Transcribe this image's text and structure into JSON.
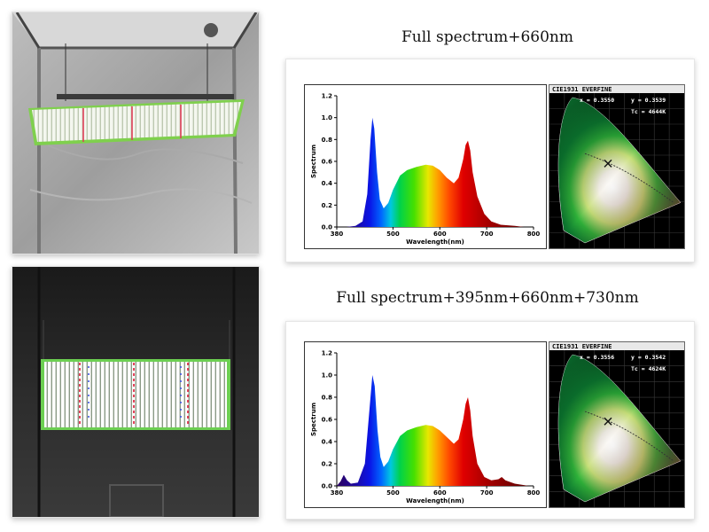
{
  "captions": {
    "top": "Full spectrum+660nm",
    "bottom": "Full spectrum+395nm+660nm+730nm"
  },
  "charts": [
    {
      "chart_data": {
        "type": "area",
        "title": "",
        "xlabel": "Wavelength(nm)",
        "ylabel": "Spectrum",
        "xlim": [
          380,
          800
        ],
        "ylim": [
          0,
          1.2
        ],
        "xticks": [
          "380",
          "500",
          "600",
          "700",
          "800"
        ],
        "yticks": [
          "0.0",
          "0.2",
          "0.4",
          "0.6",
          "0.8",
          "1.0",
          "1.2"
        ],
        "grid": false,
        "series": [
          {
            "x": [
              400,
              420,
              435,
              445,
              452,
              456,
              460,
              466,
              472,
              480,
              490,
              500,
              515,
              530,
              550,
              570,
              585,
              600,
              615,
              630,
              640,
              650,
              655,
              660,
              665,
              670,
              680,
              695,
              710,
              730,
              760,
              780
            ],
            "y": [
              0.0,
              0.01,
              0.05,
              0.3,
              0.8,
              1.0,
              0.9,
              0.5,
              0.25,
              0.17,
              0.22,
              0.34,
              0.47,
              0.52,
              0.55,
              0.57,
              0.56,
              0.52,
              0.45,
              0.4,
              0.45,
              0.62,
              0.75,
              0.79,
              0.7,
              0.5,
              0.28,
              0.12,
              0.05,
              0.02,
              0.01,
              0.0
            ]
          }
        ]
      },
      "cie": {
        "header": "CIE1931 EVERFINE",
        "x_label": "x = 0.3550",
        "y_label": "y = 0.3539",
        "tc_label": "Tc = 4644K"
      }
    },
    {
      "chart_data": {
        "type": "area",
        "title": "",
        "xlabel": "Wavelength(nm)",
        "ylabel": "Spectrum",
        "xlim": [
          380,
          800
        ],
        "ylim": [
          0,
          1.2
        ],
        "xticks": [
          "380",
          "500",
          "600",
          "700",
          "800"
        ],
        "yticks": [
          "0.0",
          "0.2",
          "0.4",
          "0.6",
          "0.8",
          "1.0",
          "1.2"
        ],
        "grid": false,
        "series": [
          {
            "x": [
              380,
              388,
              395,
              402,
              410,
              425,
              440,
              450,
              456,
              461,
              467,
              473,
              480,
              490,
              500,
              515,
              530,
              550,
              570,
              585,
              600,
              615,
              630,
              640,
              650,
              655,
              660,
              665,
              670,
              680,
              695,
              710,
              725,
              732,
              740,
              760,
              790
            ],
            "y": [
              0.0,
              0.04,
              0.1,
              0.05,
              0.02,
              0.03,
              0.2,
              0.7,
              1.0,
              0.9,
              0.5,
              0.26,
              0.17,
              0.22,
              0.33,
              0.45,
              0.5,
              0.53,
              0.55,
              0.54,
              0.5,
              0.44,
              0.38,
              0.42,
              0.6,
              0.74,
              0.8,
              0.68,
              0.45,
              0.2,
              0.08,
              0.05,
              0.06,
              0.08,
              0.05,
              0.02,
              0.0
            ]
          }
        ]
      },
      "cie": {
        "header": "CIE1931 EVERFINE",
        "x_label": "x = 0.3556",
        "y_label": "y = 0.3542",
        "tc_label": "Tc = 4624K"
      }
    }
  ]
}
